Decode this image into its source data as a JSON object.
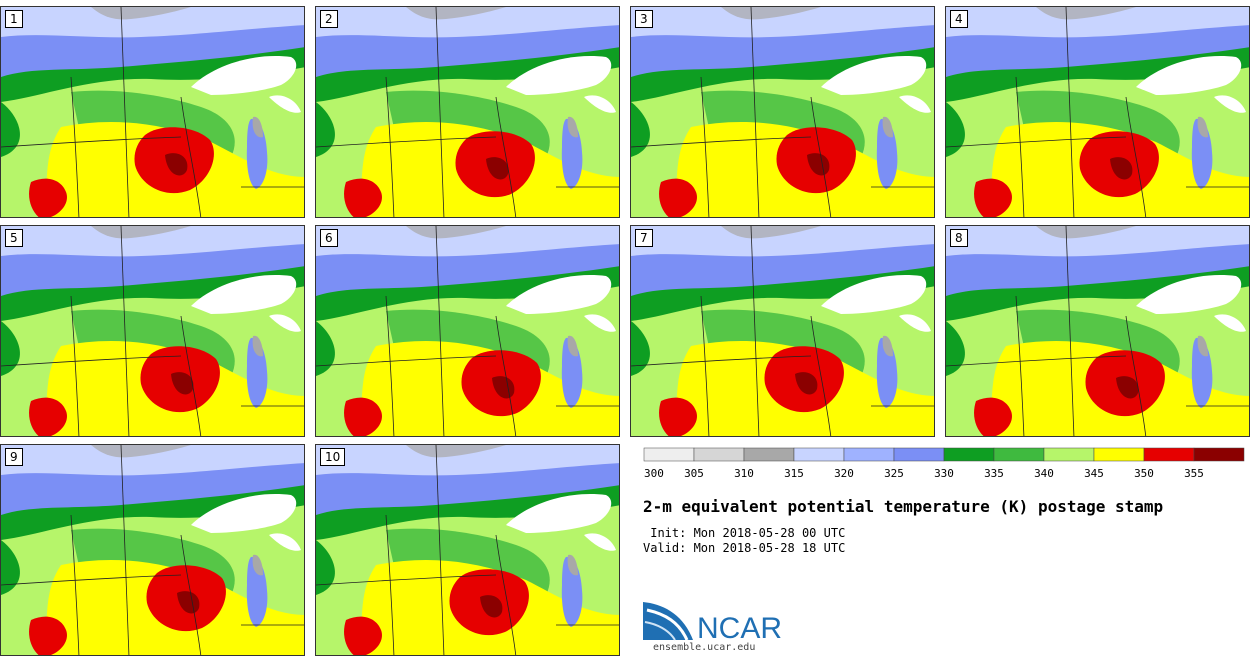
{
  "members": [
    {
      "label": "1"
    },
    {
      "label": "2"
    },
    {
      "label": "3"
    },
    {
      "label": "4"
    },
    {
      "label": "5"
    },
    {
      "label": "6"
    },
    {
      "label": "7"
    },
    {
      "label": "8"
    },
    {
      "label": "9"
    },
    {
      "label": "10"
    }
  ],
  "colorbar": {
    "ticks": [
      "300",
      "305",
      "310",
      "315",
      "320",
      "325",
      "330",
      "335",
      "340",
      "345",
      "350",
      "355"
    ],
    "colors": [
      "#eeeeee",
      "#d6d6d6",
      "#a8a8a8",
      "#c8d4ff",
      "#9fb2ff",
      "#7b8ff5",
      "#0e9e22",
      "#3fba3f",
      "#b6f56a",
      "#ffff00",
      "#e60000",
      "#8b0000"
    ]
  },
  "map_colors": {
    "land_base": "#b6f56a",
    "north_band": "#c8d4ff",
    "blue_band": "#7b8ff5",
    "green_band": "#0e9e22",
    "mid_green": "#3fba3f",
    "yellow": "#ffff00",
    "red": "#e60000",
    "dark_red": "#8b0000",
    "lake": "#ffffff",
    "gray": "#a8a8a8"
  },
  "title": "2-m equivalent potential temperature (K) postage stamp",
  "init_text": " Init: Mon 2018-05-28 00 UTC",
  "valid_text": "Valid: Mon 2018-05-28 18 UTC",
  "logo": {
    "text": "NCAR",
    "url": "ensemble.ucar.edu",
    "color": "#1f6fb3"
  }
}
